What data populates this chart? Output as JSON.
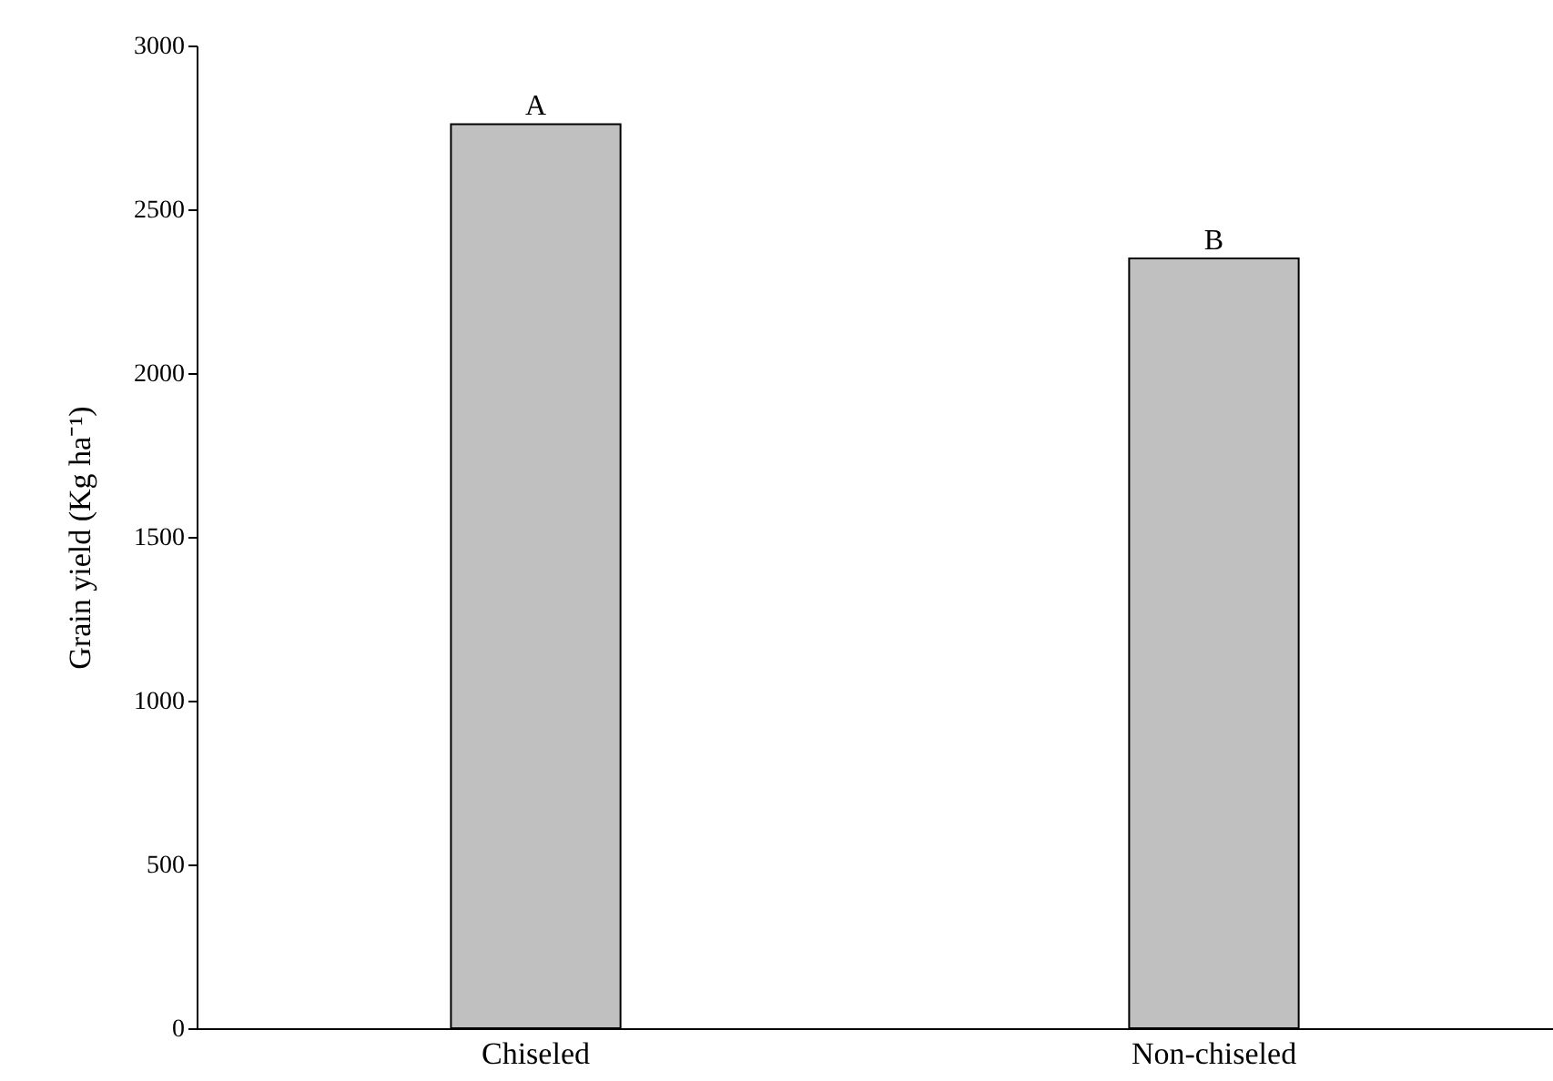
{
  "chart_data": {
    "type": "bar",
    "ylabel": "Grain yield (Kg ha⁻¹)",
    "categories": [
      "Chiseled",
      "Non-chiseled"
    ],
    "values": [
      2760,
      2350
    ],
    "color": "#c0c0c0",
    "ylim": [
      0,
      3000
    ],
    "yticks": [
      0,
      500,
      1000,
      1500,
      2000,
      2500,
      3000
    ],
    "grid": false,
    "annotations": [
      {
        "text": "A",
        "x": "Chiseled",
        "y": 2760
      },
      {
        "text": "B",
        "x": "Non-chiseled",
        "y": 2350
      }
    ]
  }
}
